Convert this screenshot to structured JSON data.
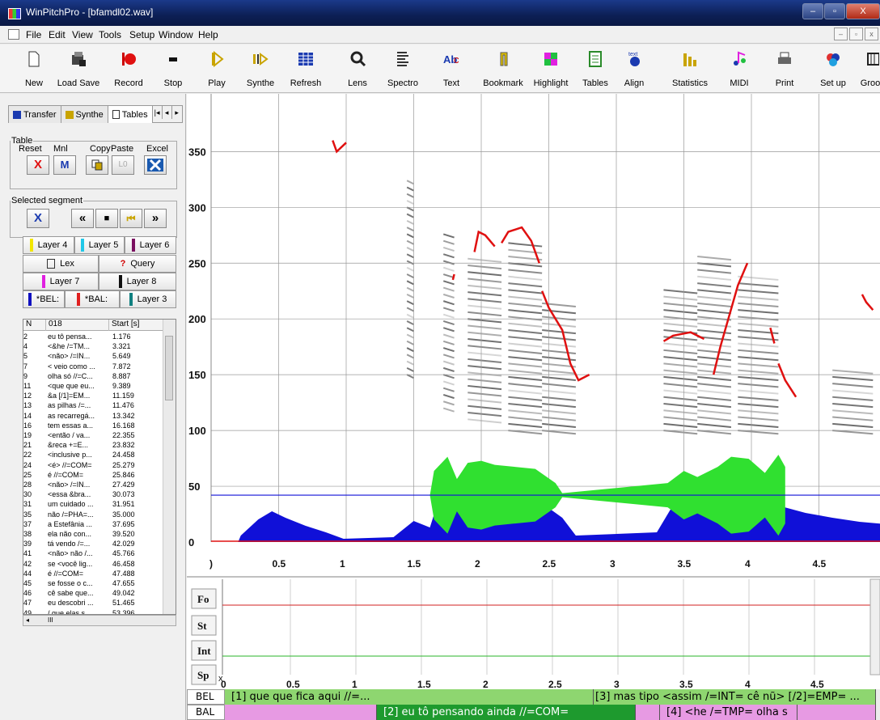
{
  "window": {
    "title": "WinPitchPro - [bfamdl02.wav]",
    "buttons": [
      "–",
      "▫",
      "X"
    ]
  },
  "menu": [
    "File",
    "Edit",
    "View",
    "Tools",
    "Setup",
    "Window",
    "Help"
  ],
  "toolbar": [
    {
      "label": "New",
      "icon": "document-icon"
    },
    {
      "label": "Load Save",
      "icon": "folder-disk-icon"
    },
    {
      "label": "Record",
      "icon": "record-icon"
    },
    {
      "label": "Stop",
      "icon": "stop-icon"
    },
    {
      "label": "Play",
      "icon": "play-icon"
    },
    {
      "label": "Synthe",
      "icon": "synthe-icon"
    },
    {
      "label": "Refresh",
      "icon": "grid-icon"
    },
    {
      "label": "Lens",
      "icon": "lens-icon"
    },
    {
      "label": "Spectro",
      "icon": "spectro-icon"
    },
    {
      "label": "Text",
      "icon": "text-icon"
    },
    {
      "label": "Bookmark",
      "icon": "bookmark-icon"
    },
    {
      "label": "Highlight",
      "icon": "highlight-icon"
    },
    {
      "label": "Tables",
      "icon": "tables-icon"
    },
    {
      "label": "Align",
      "icon": "align-icon"
    },
    {
      "label": "Statistics",
      "icon": "statistics-icon"
    },
    {
      "label": "MIDI",
      "icon": "midi-icon"
    },
    {
      "label": "Print",
      "icon": "printer-icon"
    },
    {
      "label": "Set up",
      "icon": "setup-icon"
    },
    {
      "label": "Groo",
      "icon": "group-icon"
    }
  ],
  "left": {
    "tabs": [
      "Transfer",
      "Synthe",
      "Tables"
    ],
    "table_group": "Table",
    "table_labels": {
      "reset": "Reset",
      "mnl": "Mnl",
      "copy": "Copy",
      "paste": "Paste",
      "excel": "Excel"
    },
    "table_buttons": {
      "reset": "X",
      "mnl": "M",
      "paste": "L0"
    },
    "segment_group": "Selected segment",
    "segment_buttons": [
      "X",
      "«",
      "■",
      "⏮",
      "»"
    ],
    "layers": [
      {
        "label": "Layer 4",
        "color": "#f2e600"
      },
      {
        "label": "Layer 5",
        "color": "#20c8e8"
      },
      {
        "label": "Layer 6",
        "color": "#7a1060"
      },
      {
        "label": "Lex",
        "color": ""
      },
      {
        "label": "Query",
        "color": "#d00000"
      },
      {
        "label": "Layer 7",
        "color": "#e020e0"
      },
      {
        "label": "Layer 8",
        "color": "#111111"
      },
      {
        "label": "*BEL:",
        "color": "#1010c0"
      },
      {
        "label": "*BAL:",
        "color": "#e02020"
      },
      {
        "label": "Layer 3",
        "color": "#108080"
      }
    ],
    "list_headers": [
      "N",
      "018",
      "Start [s]"
    ],
    "rows": [
      [
        "2",
        "eu tô pensa...",
        "1.176"
      ],
      [
        "4",
        "<&he /=TM...",
        "3.321"
      ],
      [
        "5",
        "<não> /=IN...",
        "5.649"
      ],
      [
        "7",
        "< veio como ...",
        "7.872"
      ],
      [
        "9",
        "olha só //=C...",
        "8.887"
      ],
      [
        "11",
        "<que que eu...",
        "9.389"
      ],
      [
        "12",
        "&a [/1]=EM...",
        "11.159"
      ],
      [
        "13",
        "as pilhas /=...",
        "11.476"
      ],
      [
        "14",
        "as recarregá...",
        "13.342"
      ],
      [
        "16",
        "tem essas a...",
        "16.168"
      ],
      [
        "19",
        "<então / va...",
        "22.355"
      ],
      [
        "21",
        "&reca +=E...",
        "23.832"
      ],
      [
        "22",
        "<inclusive p...",
        "24.458"
      ],
      [
        "24",
        "<é> //=COM=",
        "25.279"
      ],
      [
        "25",
        "é //=COM=",
        "25.846"
      ],
      [
        "28",
        "<não> /=IN...",
        "27.429"
      ],
      [
        "30",
        "<essa &bra...",
        "30.073"
      ],
      [
        "31",
        "um cuidado ...",
        "31.951"
      ],
      [
        "35",
        "não /=PHA=...",
        "35.000"
      ],
      [
        "37",
        "a Estefânia ...",
        "37.695"
      ],
      [
        "38",
        "ela não con...",
        "39.520"
      ],
      [
        "39",
        "tá vendo /=...",
        "42.029"
      ],
      [
        "41",
        "<não> não /...",
        "45.766"
      ],
      [
        "42",
        "se <você lig...",
        "46.458"
      ],
      [
        "44",
        "é //=COM=",
        "47.488"
      ],
      [
        "45",
        "se fosse o c...",
        "47.655"
      ],
      [
        "46",
        "cê sabe que...",
        "49.042"
      ],
      [
        "47",
        "eu descobri ...",
        "51.465"
      ],
      [
        "49",
        "/ que elas s...",
        "53.396"
      ]
    ],
    "hscroll_thumb": "III"
  },
  "graph": {
    "y_ticks": [
      "350",
      "300",
      "250",
      "200",
      "150",
      "100",
      "50",
      "0"
    ],
    "x_ticks": [
      "0.5",
      "1",
      "1.5",
      "2",
      "2.5",
      "3",
      "3.5",
      "4",
      "4.5"
    ],
    "x_origin": ")",
    "colors": {
      "pitch": "#e01010",
      "intensity": "#1010d8",
      "waveform": "#30e030",
      "grid": "#999999"
    }
  },
  "lower": {
    "labels": [
      "Fo",
      "St",
      "Int",
      "Sp"
    ],
    "x_ticks": [
      "0",
      "0.5",
      "1",
      "1.5",
      "2",
      "2.5",
      "3",
      "3.5",
      "4",
      "4.5"
    ],
    "marker": "x"
  },
  "tiers": {
    "bel_label": "BEL",
    "bal_label": "BAL",
    "bel_segments": [
      "[1] que que fica aqui //=...",
      "[3] mas tipo <assim /=INT= cê nũ> [/2]=EMP= ..."
    ],
    "bal_segments": [
      "[2] eu tô pensando ainda //=COM=",
      "[4] <he /=TMP= olha s"
    ]
  }
}
